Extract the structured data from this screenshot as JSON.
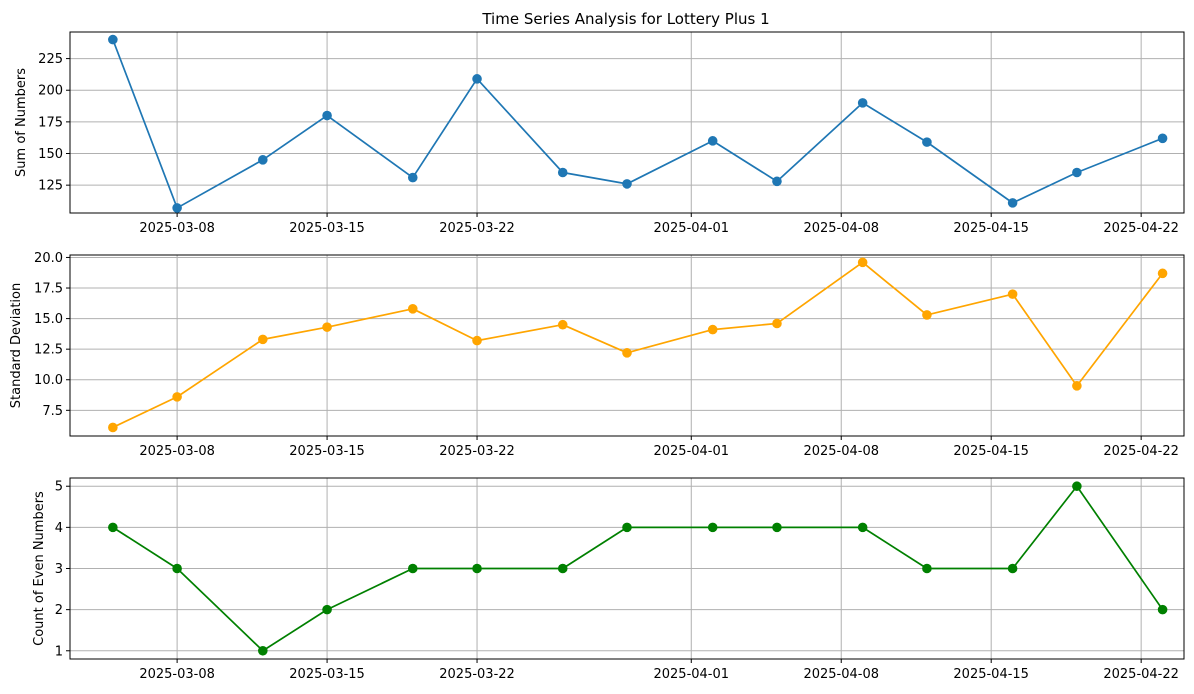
{
  "title": "Time Series Analysis for Lottery Plus 1",
  "x_tick_labels": [
    "2025-03-08",
    "2025-03-15",
    "2025-03-22",
    "2025-04-01",
    "2025-04-08",
    "2025-04-15",
    "2025-04-22"
  ],
  "chart_data": [
    {
      "type": "line",
      "title": "Time Series Analysis for Lottery Plus 1",
      "xlabel": "",
      "ylabel": "Sum of Numbers",
      "color": "#1f77b4",
      "grid": true,
      "x": [
        "2025-03-05",
        "2025-03-08",
        "2025-03-12",
        "2025-03-15",
        "2025-03-19",
        "2025-03-22",
        "2025-03-26",
        "2025-03-29",
        "2025-04-02",
        "2025-04-05",
        "2025-04-09",
        "2025-04-12",
        "2025-04-16",
        "2025-04-19",
        "2025-04-23"
      ],
      "y": [
        240,
        107,
        145,
        180,
        131,
        209,
        135,
        126,
        160,
        128,
        190,
        159,
        111,
        135,
        162
      ],
      "yticks": [
        125,
        150,
        175,
        200,
        225
      ],
      "ylim": [
        103,
        246
      ],
      "xlim": [
        "2025-03-03",
        "2025-04-24"
      ]
    },
    {
      "type": "line",
      "title": "",
      "xlabel": "",
      "ylabel": "Standard Deviation",
      "color": "#ffa500",
      "grid": true,
      "x": [
        "2025-03-05",
        "2025-03-08",
        "2025-03-12",
        "2025-03-15",
        "2025-03-19",
        "2025-03-22",
        "2025-03-26",
        "2025-03-29",
        "2025-04-02",
        "2025-04-05",
        "2025-04-09",
        "2025-04-12",
        "2025-04-16",
        "2025-04-19",
        "2025-04-23"
      ],
      "y": [
        6.1,
        8.6,
        13.3,
        14.3,
        15.8,
        13.2,
        14.5,
        12.2,
        14.1,
        14.6,
        19.6,
        15.3,
        17.0,
        9.5,
        18.7
      ],
      "yticks": [
        7.5,
        10.0,
        12.5,
        15.0,
        17.5,
        20.0
      ],
      "ylim": [
        5.4,
        20.2
      ],
      "xlim": [
        "2025-03-03",
        "2025-04-24"
      ]
    },
    {
      "type": "line",
      "title": "",
      "xlabel": "",
      "ylabel": "Count of Even Numbers",
      "color": "#008000",
      "grid": true,
      "x": [
        "2025-03-05",
        "2025-03-08",
        "2025-03-12",
        "2025-03-15",
        "2025-03-19",
        "2025-03-22",
        "2025-03-26",
        "2025-03-29",
        "2025-04-02",
        "2025-04-05",
        "2025-04-09",
        "2025-04-12",
        "2025-04-16",
        "2025-04-19",
        "2025-04-23"
      ],
      "y": [
        4,
        3,
        1,
        2,
        3,
        3,
        3,
        4,
        4,
        4,
        4,
        3,
        3,
        5,
        2
      ],
      "yticks": [
        1,
        2,
        3,
        4,
        5
      ],
      "ylim": [
        0.8,
        5.2
      ],
      "xlim": [
        "2025-03-03",
        "2025-04-24"
      ]
    }
  ]
}
